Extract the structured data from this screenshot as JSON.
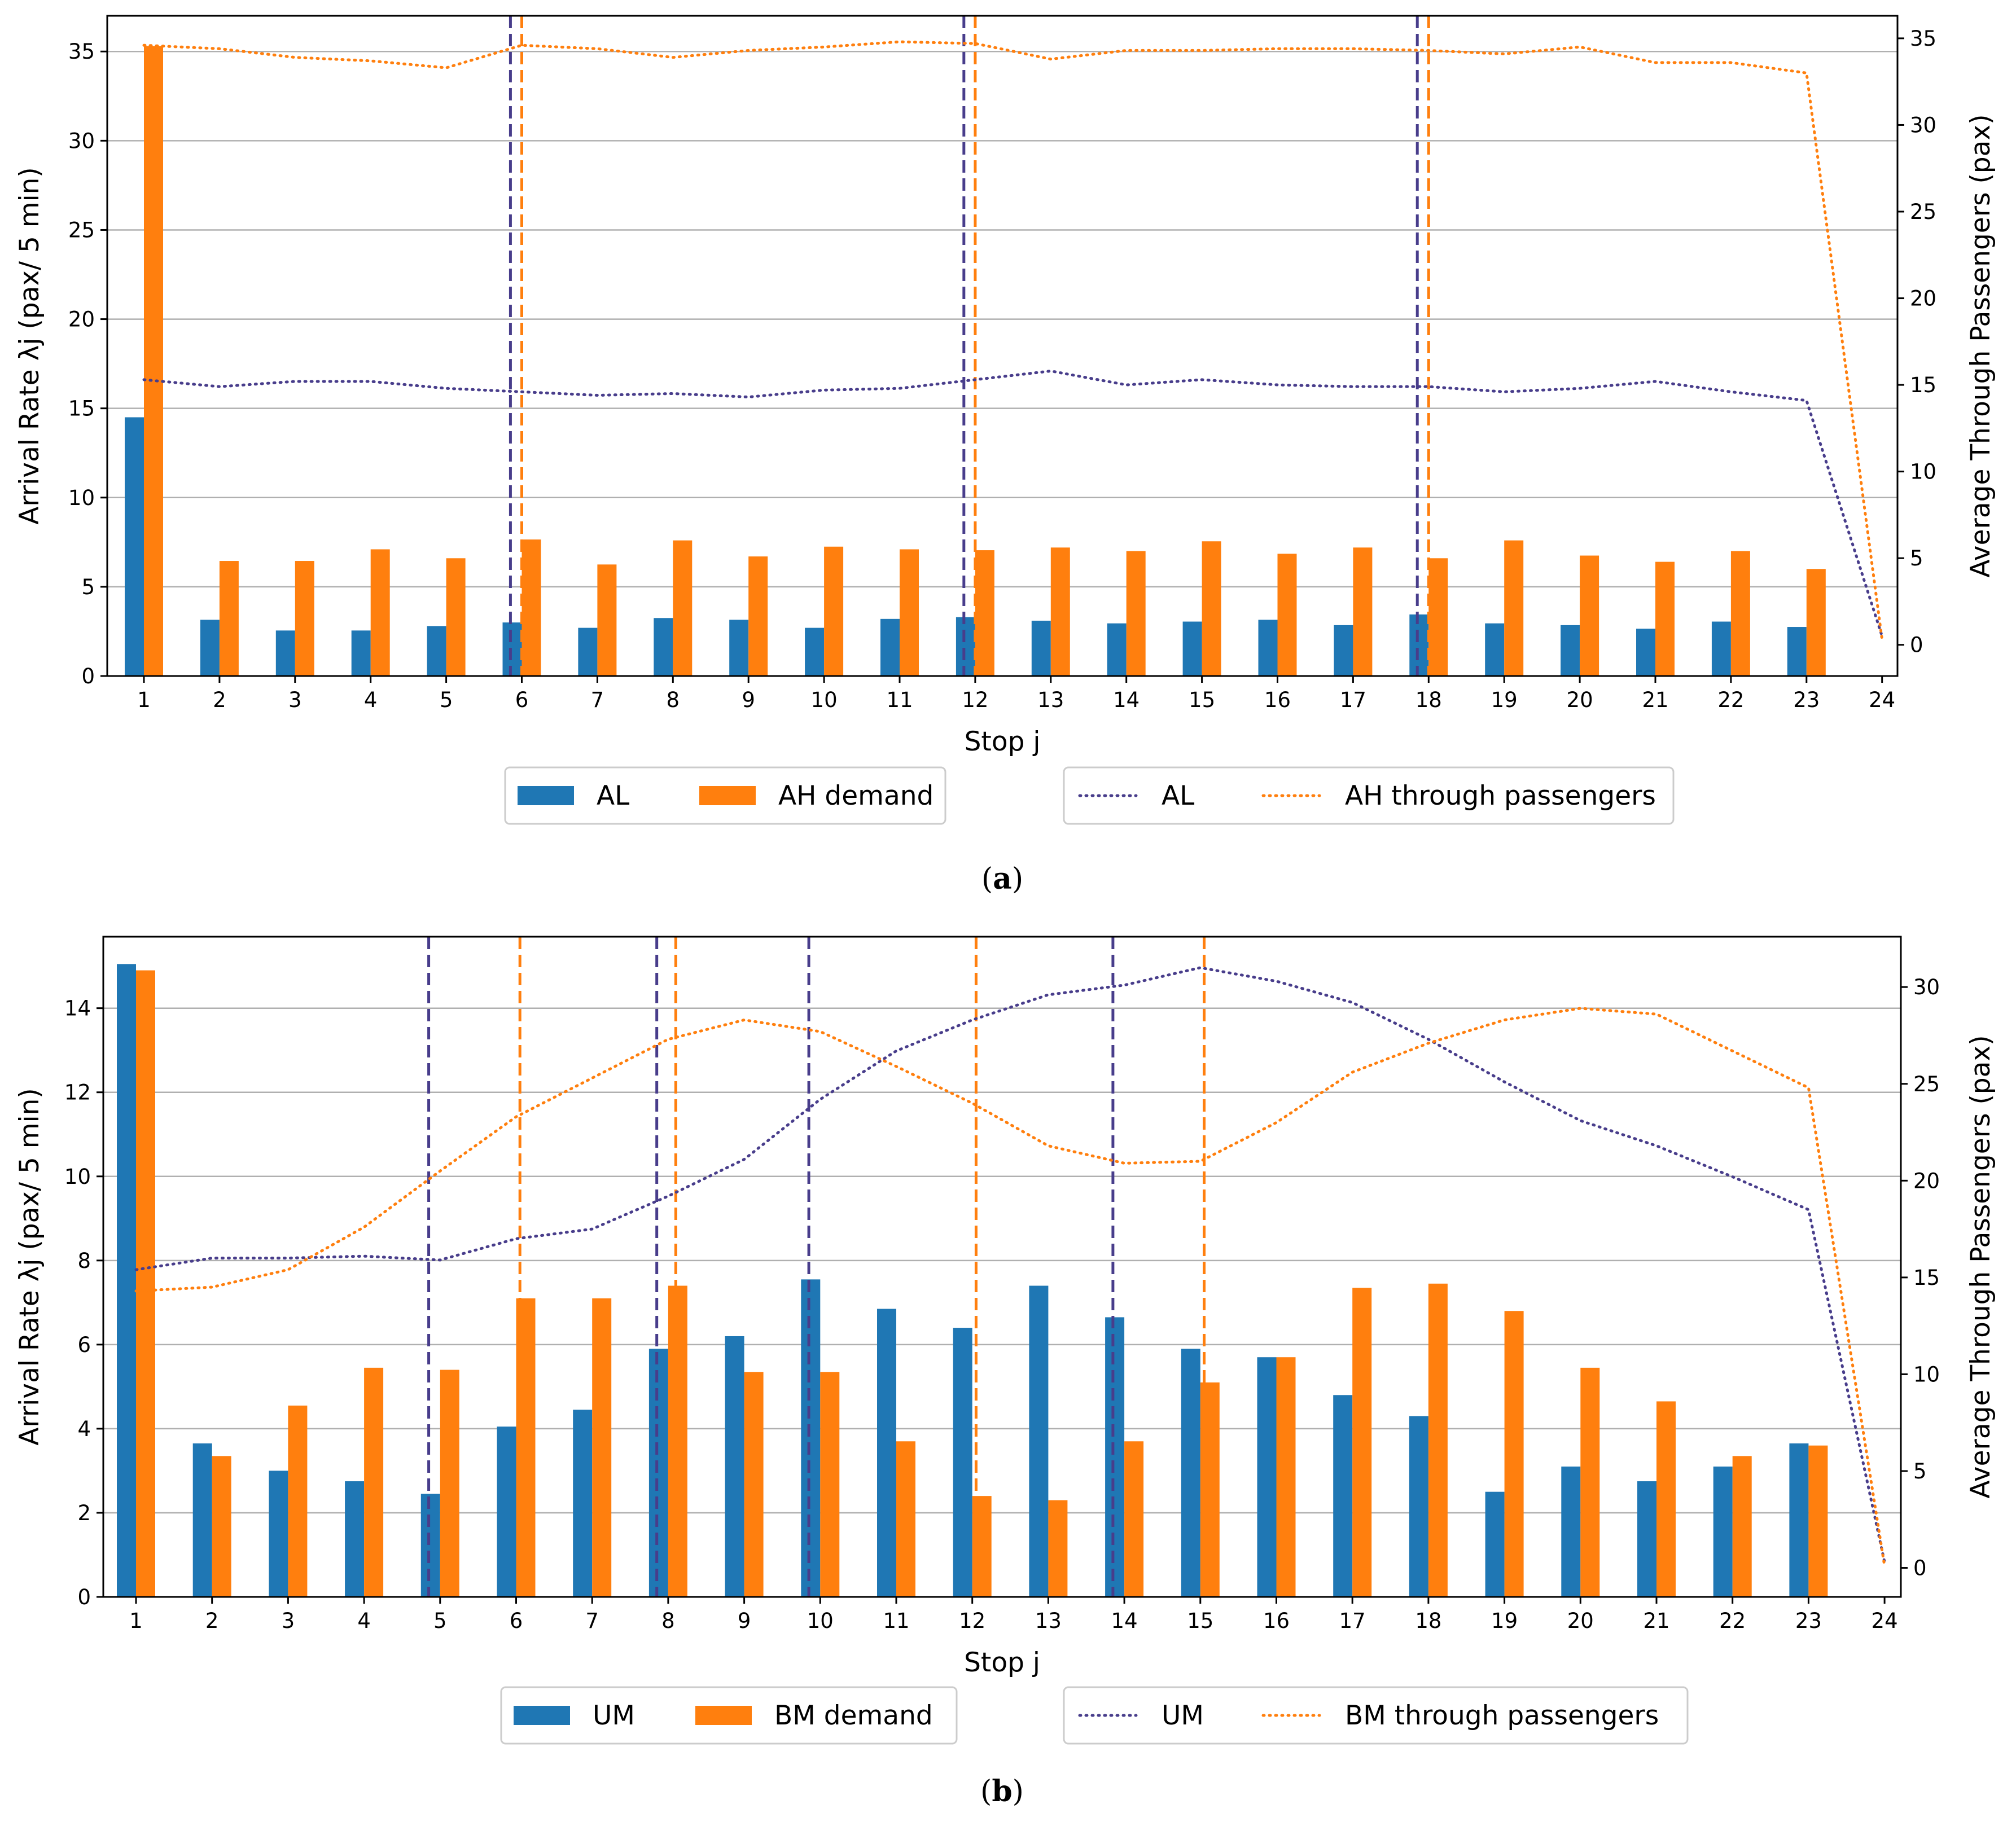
{
  "colors": {
    "blue": "#1f77b4",
    "orange": "#ff7f0e",
    "purple": "#483d8b",
    "grid": "#b0b0b0"
  },
  "chart_data": [
    {
      "type": "bar",
      "caption": "a",
      "categories": [
        "1",
        "2",
        "3",
        "4",
        "5",
        "6",
        "7",
        "8",
        "9",
        "10",
        "11",
        "12",
        "13",
        "14",
        "15",
        "16",
        "17",
        "18",
        "19",
        "20",
        "21",
        "22",
        "23",
        "24"
      ],
      "xlabel": "Stop j",
      "ylabel": "Arrival Rate λj (pax/ 5 min)",
      "y2label": "Average Through Passengers (pax)",
      "ylim": [
        0,
        37
      ],
      "y2lim": [
        -1.8,
        36.3
      ],
      "yticks": [
        0,
        5,
        10,
        15,
        20,
        25,
        30,
        35
      ],
      "y2ticks": [
        0,
        5,
        10,
        15,
        20,
        25,
        30,
        35
      ],
      "series": [
        {
          "name": "AL",
          "kind": "bar",
          "color": "blue",
          "values": [
            14.5,
            3.15,
            2.55,
            2.55,
            2.8,
            3.0,
            2.7,
            3.25,
            3.15,
            2.7,
            3.2,
            3.3,
            3.1,
            2.95,
            3.05,
            3.15,
            2.85,
            3.45,
            2.95,
            2.85,
            2.65,
            3.05,
            2.75,
            0
          ]
        },
        {
          "name": "AH demand",
          "kind": "bar",
          "color": "orange",
          "values": [
            35.3,
            6.45,
            6.45,
            7.1,
            6.6,
            7.65,
            6.25,
            7.6,
            6.7,
            7.25,
            7.1,
            7.05,
            7.2,
            7.0,
            7.55,
            6.85,
            7.2,
            6.6,
            7.6,
            6.75,
            6.4,
            7.0,
            6.0,
            0
          ]
        },
        {
          "name": "AL",
          "kind": "line",
          "color": "purple",
          "values": [
            15.3,
            14.9,
            15.2,
            15.2,
            14.8,
            14.6,
            14.4,
            14.5,
            14.3,
            14.7,
            14.8,
            15.3,
            15.8,
            15.0,
            15.3,
            15.0,
            14.9,
            14.9,
            14.6,
            14.8,
            15.2,
            14.6,
            14.1,
            0.5
          ]
        },
        {
          "name": "AH through passengers",
          "kind": "line",
          "color": "orange",
          "values": [
            34.6,
            34.4,
            33.9,
            33.7,
            33.3,
            34.6,
            34.4,
            33.9,
            34.3,
            34.5,
            34.8,
            34.7,
            33.8,
            34.3,
            34.3,
            34.4,
            34.4,
            34.3,
            34.1,
            34.5,
            33.6,
            33.6,
            33.0,
            0.3
          ]
        }
      ],
      "vlines": [
        {
          "x": 5.85,
          "color": "purple"
        },
        {
          "x": 6.0,
          "color": "orange"
        },
        {
          "x": 11.85,
          "color": "purple"
        },
        {
          "x": 12.0,
          "color": "orange"
        },
        {
          "x": 17.85,
          "color": "purple"
        },
        {
          "x": 18.0,
          "color": "orange"
        }
      ],
      "legend_bars": [
        "AL",
        "AH demand"
      ],
      "legend_lines": [
        "AL",
        "AH through passengers"
      ]
    },
    {
      "type": "bar",
      "caption": "b",
      "categories": [
        "1",
        "2",
        "3",
        "4",
        "5",
        "6",
        "7",
        "8",
        "9",
        "10",
        "11",
        "12",
        "13",
        "14",
        "15",
        "16",
        "17",
        "18",
        "19",
        "20",
        "21",
        "22",
        "23",
        "24"
      ],
      "xlabel": "Stop j",
      "ylabel": "Arrival Rate λj (pax/ 5 min)",
      "y2label": "Average Through Passengers (pax)",
      "ylim": [
        0,
        15.7
      ],
      "y2lim": [
        -1.5,
        32.6
      ],
      "yticks": [
        0,
        2,
        4,
        6,
        8,
        10,
        12,
        14
      ],
      "y2ticks": [
        0,
        5,
        10,
        15,
        20,
        25,
        30
      ],
      "series": [
        {
          "name": "UM",
          "kind": "bar",
          "color": "blue",
          "values": [
            15.05,
            3.65,
            3.0,
            2.75,
            2.45,
            4.05,
            4.45,
            5.9,
            6.2,
            7.55,
            6.85,
            6.4,
            7.4,
            6.65,
            5.9,
            5.7,
            4.8,
            4.3,
            2.5,
            3.1,
            2.75,
            3.1,
            3.65,
            0
          ]
        },
        {
          "name": "BM demand",
          "kind": "bar",
          "color": "orange",
          "values": [
            14.9,
            3.35,
            4.55,
            5.45,
            5.4,
            7.1,
            7.1,
            7.4,
            5.35,
            5.35,
            3.7,
            2.4,
            2.3,
            3.7,
            5.1,
            5.7,
            7.35,
            7.45,
            6.8,
            5.45,
            4.65,
            3.35,
            3.6,
            0
          ]
        },
        {
          "name": "UM",
          "kind": "line",
          "color": "purple",
          "values": [
            15.4,
            16.0,
            16.0,
            16.1,
            15.9,
            17.0,
            17.5,
            19.2,
            21.1,
            24.2,
            26.7,
            28.3,
            29.6,
            30.1,
            31.0,
            30.3,
            29.2,
            27.3,
            25.1,
            23.1,
            21.8,
            20.2,
            18.5,
            0.3
          ]
        },
        {
          "name": "BM through passengers",
          "kind": "line",
          "color": "orange",
          "values": [
            14.3,
            14.5,
            15.4,
            17.6,
            20.5,
            23.3,
            25.3,
            27.3,
            28.3,
            27.7,
            25.9,
            24.0,
            21.8,
            20.9,
            21.0,
            23.0,
            25.6,
            27.1,
            28.3,
            28.9,
            28.6,
            26.7,
            24.8,
            0.1
          ]
        }
      ],
      "vlines": [
        {
          "x": 4.85,
          "color": "purple"
        },
        {
          "x": 6.05,
          "color": "orange"
        },
        {
          "x": 7.85,
          "color": "purple"
        },
        {
          "x": 8.1,
          "color": "orange"
        },
        {
          "x": 9.85,
          "color": "purple"
        },
        {
          "x": 12.05,
          "color": "orange"
        },
        {
          "x": 13.85,
          "color": "purple"
        },
        {
          "x": 15.05,
          "color": "orange"
        }
      ],
      "legend_bars": [
        "UM",
        "BM demand"
      ],
      "legend_lines": [
        "UM",
        "BM through passengers"
      ]
    }
  ]
}
